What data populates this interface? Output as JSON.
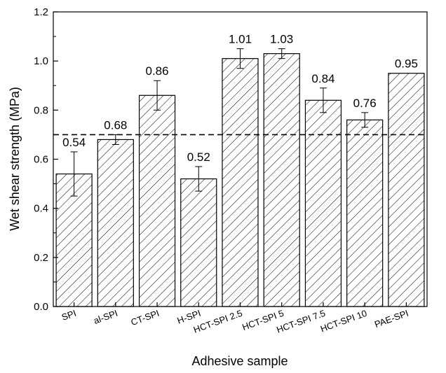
{
  "chart_data": {
    "type": "bar",
    "title": "",
    "xlabel": "Adhesive sample",
    "ylabel": "Wet shear strength (MPa)",
    "ylim": [
      0,
      1.2
    ],
    "y_ticks": [
      "0.0",
      "0.2",
      "0.4",
      "0.6",
      "0.8",
      "1.0",
      "1.2"
    ],
    "grid": false,
    "bar_pattern": "diagonal-hatch",
    "reference_line": {
      "y": 0.7,
      "style": "dashed"
    },
    "categories": [
      "SPI",
      "al-SPI",
      "CT-SPI",
      "H-SPI",
      "HCT-SPI 2.5",
      "HCT-SPI 5",
      "HCT-SPI 7.5",
      "HCT-SPI 10",
      "PAE-SPI"
    ],
    "values": [
      0.54,
      0.68,
      0.86,
      0.52,
      1.01,
      1.03,
      0.84,
      0.76,
      0.95
    ],
    "value_labels": [
      "0.54",
      "0.68",
      "0.86",
      "0.52",
      "1.01",
      "1.03",
      "0.84",
      "0.76",
      "0.95"
    ],
    "errors": [
      0.09,
      0.02,
      0.06,
      0.05,
      0.04,
      0.02,
      0.05,
      0.03,
      null
    ]
  }
}
